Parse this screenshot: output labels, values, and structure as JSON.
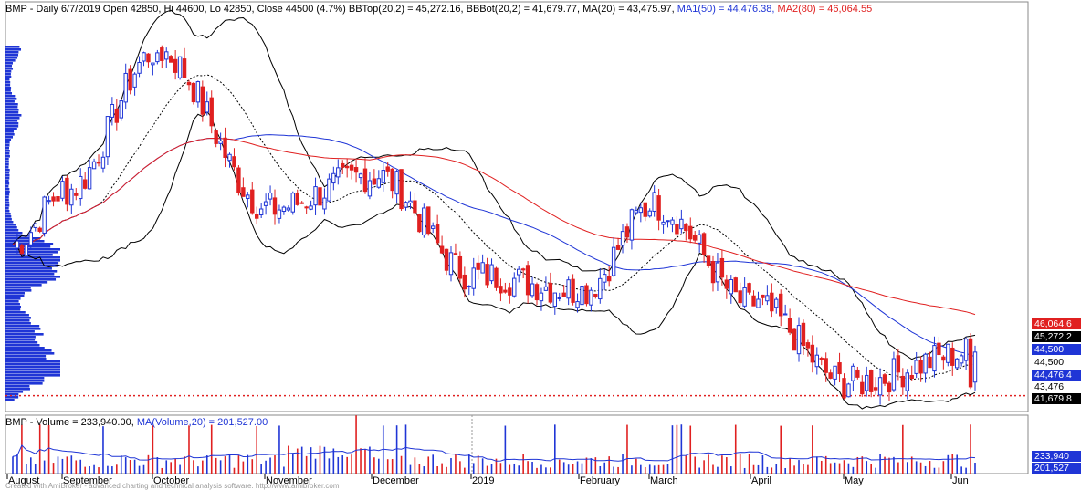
{
  "header": {
    "main_prefix": "BMP - Daily 6/7/2019 Open 42850, Hi 44600, Lo 42850, Close 44500 (4.7%) BBTop(20,2) = 45,272.16, BBBot(20,2) = 41,679.77, MA(20) = 43,475.97, ",
    "ma1_text": "MA1(50) = 44,476.38, ",
    "ma2_text": "MA2(80) = 46,064.55",
    "volume_prefix": "BMP - Volume = 233,940.00, ",
    "volume_ma_text": "MA(Volume,20) = 201,527.00",
    "footer_text": "Created with AmiBroker - advanced charting and technical analysis software. http://www.amibroker.com"
  },
  "colors": {
    "up": "#1f35d6",
    "down": "#e02020",
    "ma20": "#000000",
    "ma50": "#1f35d6",
    "ma80": "#e02020",
    "bands": "#000000",
    "volume_profile": "#1f35d6"
  },
  "price_tags": [
    {
      "text": "46,064.6",
      "bg": "#e02020",
      "fg": "#ffffff"
    },
    {
      "text": "45,272.2",
      "bg": "#000000",
      "fg": "#ffffff"
    },
    {
      "text": "44,500",
      "bg": "#1f35d6",
      "fg": "#ffffff"
    },
    {
      "text": "44,500",
      "bg": "#ffffff",
      "fg": "#000000"
    },
    {
      "text": "44,476.4",
      "bg": "#1f35d6",
      "fg": "#ffffff"
    },
    {
      "text": "43,476",
      "bg": "#ffffff",
      "fg": "#000000"
    },
    {
      "text": "41,679.8",
      "bg": "#000000",
      "fg": "#ffffff"
    }
  ],
  "volume_tags": [
    {
      "text": "233,940",
      "bg": "#1f35d6",
      "fg": "#ffffff"
    },
    {
      "text": "201,527",
      "bg": "#1f35d6",
      "fg": "#ffffff"
    }
  ],
  "months": [
    "August",
    "September",
    "October",
    "November",
    "December",
    "2019",
    "February",
    "March",
    "April",
    "May",
    "Jun"
  ],
  "chart_data": {
    "type": "candlestick",
    "symbol": "BMP",
    "interval": "Daily",
    "last_bar": {
      "date": "6/7/2019",
      "open": 42850,
      "high": 44600,
      "low": 42850,
      "close": 44500,
      "change_pct": 4.7
    },
    "indicators": {
      "bbtop_20_2": 45272.16,
      "bbbot_20_2": 41679.77,
      "ma20": 43475.97,
      "ma50": 44476.38,
      "ma80": 46064.55,
      "volume": 233940,
      "volume_ma20": 201527
    },
    "x_labels": [
      "August",
      "September",
      "October",
      "November",
      "December",
      "2019",
      "February",
      "March",
      "April",
      "May",
      "Jun"
    ],
    "ylim": [
      41300,
      66000
    ],
    "dotted_line_level": 41679.77,
    "series": [
      {
        "name": "BMP",
        "close_path": [
          {
            "month": "August",
            "close": 51500
          },
          {
            "month": "September",
            "close": 55000
          },
          {
            "month": "October",
            "close": 64000
          },
          {
            "month": "November",
            "close": 53800
          },
          {
            "month": "December",
            "close": 56000
          },
          {
            "month": "2019",
            "close": 49500
          },
          {
            "month": "February",
            "close": 48500
          },
          {
            "month": "March",
            "close": 54000
          },
          {
            "month": "April",
            "close": 47500
          },
          {
            "month": "May",
            "close": 42500
          },
          {
            "month": "Jun",
            "close": 44500
          }
        ]
      },
      {
        "name": "MA1(50)",
        "close_path": []
      },
      {
        "name": "MA2(80)",
        "close_path": []
      }
    ]
  }
}
